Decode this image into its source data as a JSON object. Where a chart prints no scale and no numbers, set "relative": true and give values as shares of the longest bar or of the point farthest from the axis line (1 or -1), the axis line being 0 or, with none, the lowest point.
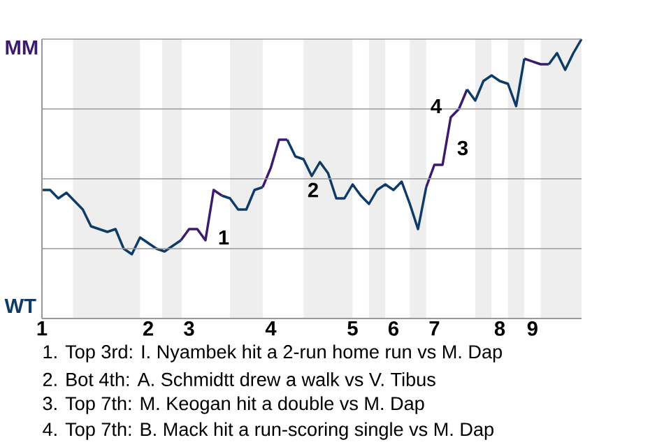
{
  "chart_data": {
    "type": "line",
    "categories": [
      "1",
      null,
      null,
      null,
      null,
      null,
      null,
      null,
      null,
      null,
      null,
      null,
      null,
      "2",
      null,
      null,
      null,
      null,
      "3",
      null,
      null,
      null,
      null,
      null,
      null,
      null,
      null,
      null,
      "4",
      null,
      null,
      null,
      null,
      null,
      null,
      null,
      null,
      null,
      "5",
      null,
      null,
      null,
      null,
      "6",
      null,
      null,
      null,
      null,
      "7",
      null,
      null,
      null,
      null,
      null,
      null,
      null,
      "8",
      null,
      null,
      null,
      "9",
      null,
      null,
      null,
      null,
      null,
      null
    ],
    "series": [
      {
        "color": "#3c1a6e",
        "values": [
          null,
          null,
          null,
          null,
          null,
          null,
          null,
          null,
          null,
          null,
          null,
          null,
          null,
          null,
          null,
          null,
          null,
          0.28,
          0.32,
          0.32,
          0.28,
          0.46,
          0.44,
          null,
          null,
          null,
          null,
          0.47,
          0.54,
          0.64,
          0.64,
          null,
          null,
          null,
          null,
          null,
          null,
          null,
          null,
          null,
          null,
          null,
          null,
          null,
          null,
          null,
          null,
          0.47,
          0.55,
          0.55,
          0.72,
          0.75,
          0.82,
          null,
          null,
          null,
          null,
          null,
          null,
          0.93,
          0.92,
          0.91,
          0.91,
          null,
          null,
          null,
          null
        ]
      },
      {
        "color": "#0d3b66",
        "values": [
          0.46,
          0.46,
          0.43,
          0.45,
          0.42,
          0.39,
          0.33,
          0.32,
          0.31,
          0.32,
          0.25,
          0.23,
          0.29,
          0.27,
          0.25,
          0.24,
          0.26,
          0.28,
          null,
          null,
          null,
          null,
          0.44,
          0.43,
          0.39,
          0.39,
          0.46,
          0.47,
          null,
          null,
          0.64,
          0.58,
          0.57,
          0.51,
          0.56,
          0.52,
          0.43,
          0.43,
          0.48,
          0.44,
          0.41,
          0.46,
          0.48,
          0.46,
          0.49,
          0.41,
          0.32,
          0.47,
          null,
          null,
          null,
          null,
          0.82,
          0.78,
          0.85,
          0.87,
          0.85,
          0.84,
          0.76,
          0.93,
          null,
          null,
          0.91,
          0.95,
          0.89,
          0.95,
          1.0
        ]
      }
    ],
    "relative": true,
    "grid": "y",
    "marker": "none",
    "line_style": "solid",
    "annotations": [
      "1",
      "2",
      "3",
      "4",
      "1. Top 3rd: I. Nyambek hit a 2-run home run vs M. Dap",
      "2. Bot 4th: A. Schmidtt drew a walk vs V. Tibus",
      "3. Top 7th: M. Keogan hit a double vs M. Dap",
      "4. Top 7th: B. Mack hit a run-scoring single vs M. Dap",
      "MM",
      "WT"
    ]
  }
}
